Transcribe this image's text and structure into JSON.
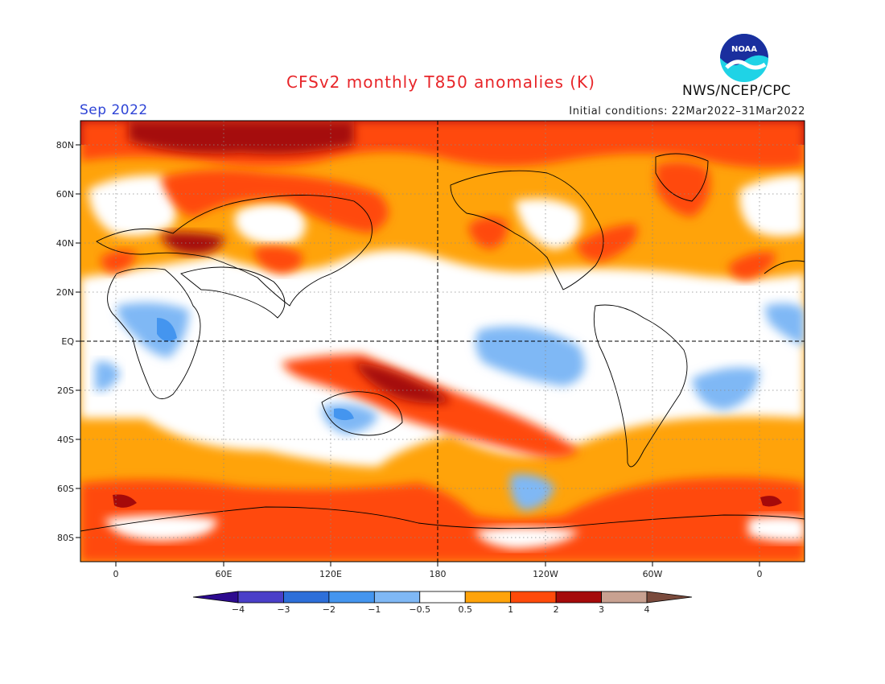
{
  "title": "CFSv2 monthly T850 anomalies (K)",
  "valid_month": "Sep 2022",
  "initial_conditions": "Initial conditions: 22Mar2022–31Mar2022",
  "agency": "NWS/NCEP/CPC",
  "logo_text": "NOAA",
  "lat_ticks": [
    "80N",
    "60N",
    "40N",
    "20N",
    "EQ",
    "20S",
    "40S",
    "60S",
    "80S"
  ],
  "lon_ticks": [
    "0",
    "60E",
    "120E",
    "180",
    "120W",
    "60W",
    "0"
  ],
  "colorbar": {
    "labels": [
      "−4",
      "−3",
      "−2",
      "−1",
      "−0.5",
      "0.5",
      "1",
      "2",
      "3",
      "4"
    ],
    "colors": [
      "#2d0b8f",
      "#4a3fc8",
      "#2d6fd9",
      "#4495ef",
      "#7fb8f5",
      "#ffffff",
      "#ffa30a",
      "#ff4a0a",
      "#a50a0a",
      "#c8a191",
      "#7a4a3c"
    ]
  }
}
